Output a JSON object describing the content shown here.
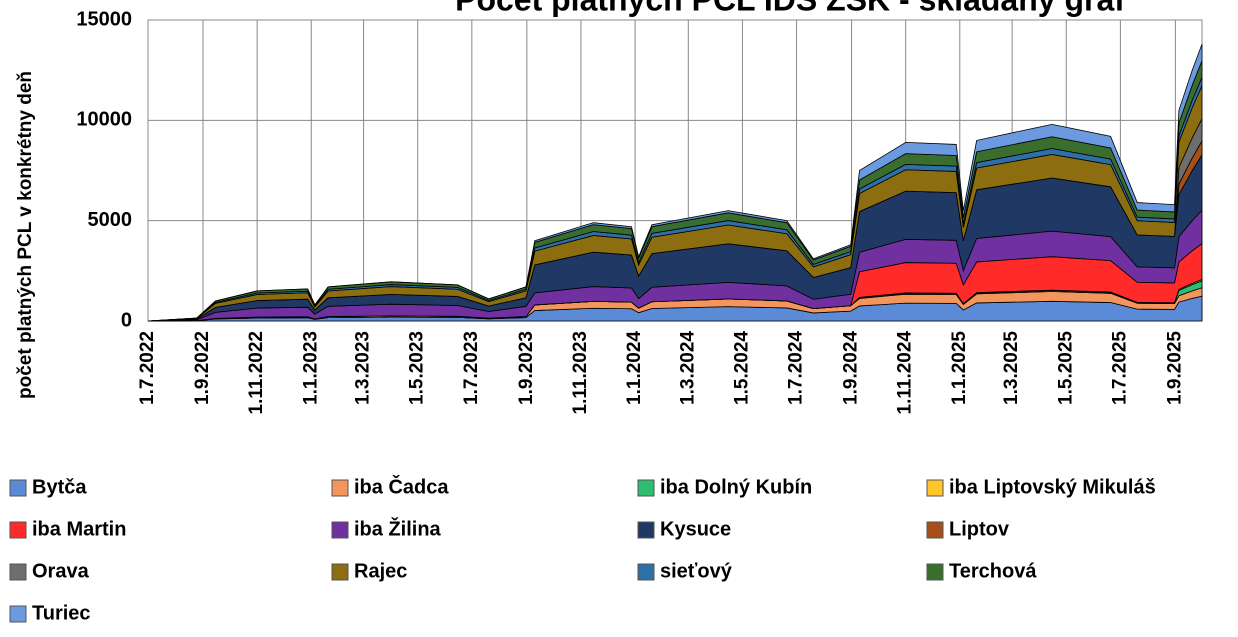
{
  "chart_data": {
    "type": "stacked_area",
    "title": "Počet platných PCL IDS ŽSK - skladaný graf",
    "y_label": "počet platných PCL v konkrétny deň",
    "x": [
      "2022-07-01",
      "2022-08-25",
      "2022-09-15",
      "2022-11-01",
      "2022-12-28",
      "2023-01-05",
      "2023-01-20",
      "2023-04-01",
      "2023-06-15",
      "2023-07-20",
      "2023-08-31",
      "2023-09-10",
      "2023-11-15",
      "2023-12-28",
      "2024-01-05",
      "2024-01-20",
      "2024-04-15",
      "2024-06-20",
      "2024-07-20",
      "2024-08-31",
      "2024-09-10",
      "2024-11-01",
      "2024-12-28",
      "2025-01-05",
      "2025-01-20",
      "2025-04-15",
      "2025-06-20",
      "2025-07-20",
      "2025-08-31",
      "2025-09-05",
      "2025-09-20",
      "2025-10-01"
    ],
    "xlim": [
      "2022-07-01",
      "2025-10-01"
    ],
    "xticks": [
      {
        "value": "2022-07-01",
        "label": "1.7.2022"
      },
      {
        "value": "2022-09-01",
        "label": "1.9.2022"
      },
      {
        "value": "2022-11-01",
        "label": "1.11.2022"
      },
      {
        "value": "2023-01-01",
        "label": "1.1.2023"
      },
      {
        "value": "2023-03-01",
        "label": "1.3.2023"
      },
      {
        "value": "2023-05-01",
        "label": "1.5.2023"
      },
      {
        "value": "2023-07-01",
        "label": "1.7.2023"
      },
      {
        "value": "2023-09-01",
        "label": "1.9.2023"
      },
      {
        "value": "2023-11-01",
        "label": "1.11.2023"
      },
      {
        "value": "2024-01-01",
        "label": "1.1.2024"
      },
      {
        "value": "2024-03-01",
        "label": "1.3.2024"
      },
      {
        "value": "2024-05-01",
        "label": "1.5.2024"
      },
      {
        "value": "2024-07-01",
        "label": "1.7.2024"
      },
      {
        "value": "2024-09-01",
        "label": "1.9.2024"
      },
      {
        "value": "2024-11-01",
        "label": "1.11.2024"
      },
      {
        "value": "2025-01-01",
        "label": "1.1.2025"
      },
      {
        "value": "2025-03-01",
        "label": "1.3.2025"
      },
      {
        "value": "2025-05-01",
        "label": "1.5.2025"
      },
      {
        "value": "2025-07-01",
        "label": "1.7.2025"
      },
      {
        "value": "2025-09-01",
        "label": "1.9.2025"
      }
    ],
    "ylim": [
      0,
      15000
    ],
    "yticks": [
      0,
      5000,
      10000,
      15000
    ],
    "grid": true,
    "series": [
      {
        "name": "Bytča",
        "color": "#5b8bd6",
        "values": [
          0,
          15,
          100,
          150,
          160,
          80,
          170,
          195,
          180,
          110,
          170,
          520,
          637,
          611,
          416,
          624,
          715,
          650,
          403,
          494,
          750,
          890,
          880,
          550,
          900,
          980,
          920,
          590,
          580,
          945,
          1125,
          1242
        ]
      },
      {
        "name": "iba Čadca",
        "color": "#f4955c",
        "values": [
          0,
          5,
          30,
          45,
          48,
          24,
          51,
          59,
          54,
          33,
          51,
          280,
          343,
          329,
          224,
          336,
          385,
          350,
          217,
          266,
          375,
          445,
          440,
          275,
          450,
          490,
          460,
          295,
          290,
          315,
          375,
          414
        ]
      },
      {
        "name": "iba Dolný Kubín",
        "color": "#2dbd6e",
        "values": [
          0,
          0,
          0,
          0,
          0,
          0,
          0,
          0,
          0,
          0,
          0,
          0,
          0,
          0,
          0,
          0,
          0,
          0,
          0,
          0,
          38,
          45,
          44,
          28,
          45,
          49,
          46,
          30,
          29,
          263,
          313,
          345
        ]
      },
      {
        "name": "iba Liptovský Mikuláš",
        "color": "#ffc629",
        "values": [
          0,
          0,
          0,
          0,
          0,
          0,
          0,
          0,
          0,
          0,
          0,
          0,
          0,
          0,
          0,
          0,
          0,
          0,
          0,
          0,
          15,
          18,
          18,
          11,
          18,
          20,
          18,
          12,
          12,
          53,
          63,
          69
        ]
      },
      {
        "name": "iba Martin",
        "color": "#ff2a2a",
        "values": [
          0,
          0,
          0,
          0,
          0,
          0,
          0,
          0,
          0,
          0,
          0,
          0,
          0,
          0,
          0,
          0,
          0,
          0,
          0,
          0,
          1275,
          1513,
          1496,
          935,
          1530,
          1666,
          1564,
          1003,
          986,
          1365,
          1625,
          1794
        ]
      },
      {
        "name": "iba Žilina",
        "color": "#7030a0",
        "values": [
          0,
          45,
          300,
          450,
          480,
          240,
          510,
          585,
          540,
          330,
          510,
          600,
          735,
          705,
          480,
          720,
          825,
          750,
          465,
          570,
          975,
          1157,
          1144,
          715,
          1170,
          1274,
          1196,
          767,
          754,
          1260,
          1500,
          1656
        ]
      },
      {
        "name": "Kysuce",
        "color": "#203864",
        "values": [
          0,
          38,
          250,
          375,
          400,
          200,
          425,
          488,
          450,
          275,
          425,
          1400,
          1715,
          1645,
          1120,
          1680,
          1925,
          1750,
          1085,
          1330,
          2025,
          2403,
          2376,
          1485,
          2430,
          2646,
          2484,
          1593,
          1566,
          2100,
          2500,
          2760
        ]
      },
      {
        "name": "Liptov",
        "color": "#a5501b",
        "values": [
          0,
          0,
          0,
          0,
          0,
          0,
          0,
          0,
          0,
          0,
          0,
          0,
          0,
          0,
          0,
          0,
          0,
          0,
          0,
          0,
          0,
          0,
          0,
          0,
          0,
          0,
          0,
          0,
          0,
          525,
          625,
          690
        ]
      },
      {
        "name": "Orava",
        "color": "#6e6e6e",
        "values": [
          0,
          0,
          0,
          0,
          0,
          0,
          0,
          0,
          0,
          0,
          0,
          0,
          0,
          0,
          0,
          0,
          0,
          0,
          0,
          0,
          0,
          0,
          0,
          0,
          0,
          0,
          0,
          0,
          0,
          840,
          1000,
          1104
        ]
      },
      {
        "name": "Rajec",
        "color": "#8c6d10",
        "values": [
          0,
          30,
          200,
          300,
          320,
          160,
          340,
          390,
          360,
          220,
          340,
          680,
          833,
          799,
          544,
          816,
          935,
          850,
          527,
          646,
          900,
          1068,
          1056,
          660,
          1080,
          1176,
          1104,
          708,
          696,
          1260,
          1500,
          1656
        ]
      },
      {
        "name": "sieťový",
        "color": "#2e6fa8",
        "values": [
          0,
          7,
          50,
          75,
          80,
          40,
          85,
          98,
          90,
          55,
          85,
          160,
          196,
          188,
          128,
          192,
          220,
          200,
          124,
          152,
          225,
          267,
          264,
          165,
          270,
          294,
          276,
          177,
          174,
          315,
          375,
          414
        ]
      },
      {
        "name": "Terchová",
        "color": "#3a6e2e",
        "values": [
          0,
          10,
          70,
          105,
          112,
          56,
          119,
          137,
          126,
          77,
          119,
          280,
          343,
          329,
          224,
          336,
          385,
          350,
          217,
          266,
          450,
          534,
          528,
          330,
          540,
          588,
          552,
          354,
          348,
          630,
          750,
          828
        ]
      },
      {
        "name": "Turiec",
        "color": "#6b9ae0",
        "values": [
          0,
          0,
          0,
          0,
          0,
          0,
          0,
          0,
          0,
          0,
          0,
          80,
          98,
          94,
          64,
          96,
          110,
          100,
          62,
          76,
          472,
          560,
          554,
          346,
          567,
          617,
          580,
          372,
          365,
          630,
          750,
          828
        ]
      }
    ]
  }
}
